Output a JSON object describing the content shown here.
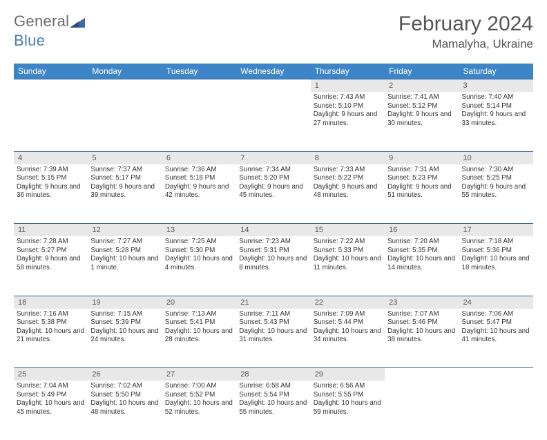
{
  "brand": {
    "part1": "General",
    "part2": "Blue"
  },
  "title": "February 2024",
  "location": "Mamalyha, Ukraine",
  "colors": {
    "header_bg": "#3d85c6",
    "header_text": "#ffffff",
    "rule": "#2f5f8f",
    "daynum_bg": "#e8e8e8",
    "text": "#333333",
    "title_text": "#555555",
    "logo_gray": "#6b6b6b",
    "logo_blue": "#4a7ab7"
  },
  "weekdays": [
    "Sunday",
    "Monday",
    "Tuesday",
    "Wednesday",
    "Thursday",
    "Friday",
    "Saturday"
  ],
  "weeks": [
    [
      null,
      null,
      null,
      null,
      {
        "n": "1",
        "sunrise": "7:43 AM",
        "sunset": "5:10 PM",
        "daylight": "9 hours and 27 minutes."
      },
      {
        "n": "2",
        "sunrise": "7:41 AM",
        "sunset": "5:12 PM",
        "daylight": "9 hours and 30 minutes."
      },
      {
        "n": "3",
        "sunrise": "7:40 AM",
        "sunset": "5:14 PM",
        "daylight": "9 hours and 33 minutes."
      }
    ],
    [
      {
        "n": "4",
        "sunrise": "7:39 AM",
        "sunset": "5:15 PM",
        "daylight": "9 hours and 36 minutes."
      },
      {
        "n": "5",
        "sunrise": "7:37 AM",
        "sunset": "5:17 PM",
        "daylight": "9 hours and 39 minutes."
      },
      {
        "n": "6",
        "sunrise": "7:36 AM",
        "sunset": "5:18 PM",
        "daylight": "9 hours and 42 minutes."
      },
      {
        "n": "7",
        "sunrise": "7:34 AM",
        "sunset": "5:20 PM",
        "daylight": "9 hours and 45 minutes."
      },
      {
        "n": "8",
        "sunrise": "7:33 AM",
        "sunset": "5:22 PM",
        "daylight": "9 hours and 48 minutes."
      },
      {
        "n": "9",
        "sunrise": "7:31 AM",
        "sunset": "5:23 PM",
        "daylight": "9 hours and 51 minutes."
      },
      {
        "n": "10",
        "sunrise": "7:30 AM",
        "sunset": "5:25 PM",
        "daylight": "9 hours and 55 minutes."
      }
    ],
    [
      {
        "n": "11",
        "sunrise": "7:28 AM",
        "sunset": "5:27 PM",
        "daylight": "9 hours and 58 minutes."
      },
      {
        "n": "12",
        "sunrise": "7:27 AM",
        "sunset": "5:28 PM",
        "daylight": "10 hours and 1 minute."
      },
      {
        "n": "13",
        "sunrise": "7:25 AM",
        "sunset": "5:30 PM",
        "daylight": "10 hours and 4 minutes."
      },
      {
        "n": "14",
        "sunrise": "7:23 AM",
        "sunset": "5:31 PM",
        "daylight": "10 hours and 8 minutes."
      },
      {
        "n": "15",
        "sunrise": "7:22 AM",
        "sunset": "5:33 PM",
        "daylight": "10 hours and 11 minutes."
      },
      {
        "n": "16",
        "sunrise": "7:20 AM",
        "sunset": "5:35 PM",
        "daylight": "10 hours and 14 minutes."
      },
      {
        "n": "17",
        "sunrise": "7:18 AM",
        "sunset": "5:36 PM",
        "daylight": "10 hours and 18 minutes."
      }
    ],
    [
      {
        "n": "18",
        "sunrise": "7:16 AM",
        "sunset": "5:38 PM",
        "daylight": "10 hours and 21 minutes."
      },
      {
        "n": "19",
        "sunrise": "7:15 AM",
        "sunset": "5:39 PM",
        "daylight": "10 hours and 24 minutes."
      },
      {
        "n": "20",
        "sunrise": "7:13 AM",
        "sunset": "5:41 PM",
        "daylight": "10 hours and 28 minutes."
      },
      {
        "n": "21",
        "sunrise": "7:11 AM",
        "sunset": "5:43 PM",
        "daylight": "10 hours and 31 minutes."
      },
      {
        "n": "22",
        "sunrise": "7:09 AM",
        "sunset": "5:44 PM",
        "daylight": "10 hours and 34 minutes."
      },
      {
        "n": "23",
        "sunrise": "7:07 AM",
        "sunset": "5:46 PM",
        "daylight": "10 hours and 38 minutes."
      },
      {
        "n": "24",
        "sunrise": "7:06 AM",
        "sunset": "5:47 PM",
        "daylight": "10 hours and 41 minutes."
      }
    ],
    [
      {
        "n": "25",
        "sunrise": "7:04 AM",
        "sunset": "5:49 PM",
        "daylight": "10 hours and 45 minutes."
      },
      {
        "n": "26",
        "sunrise": "7:02 AM",
        "sunset": "5:50 PM",
        "daylight": "10 hours and 48 minutes."
      },
      {
        "n": "27",
        "sunrise": "7:00 AM",
        "sunset": "5:52 PM",
        "daylight": "10 hours and 52 minutes."
      },
      {
        "n": "28",
        "sunrise": "6:58 AM",
        "sunset": "5:54 PM",
        "daylight": "10 hours and 55 minutes."
      },
      {
        "n": "29",
        "sunrise": "6:56 AM",
        "sunset": "5:55 PM",
        "daylight": "10 hours and 59 minutes."
      },
      null,
      null
    ]
  ],
  "labels": {
    "sunrise": "Sunrise: ",
    "sunset": "Sunset: ",
    "daylight": "Daylight: "
  }
}
